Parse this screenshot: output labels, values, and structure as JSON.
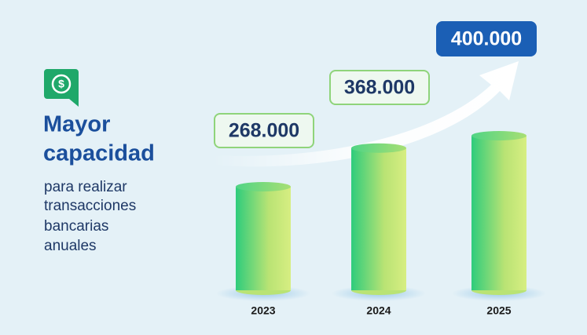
{
  "chart_data": {
    "type": "bar",
    "title": [
      "Mayor",
      "capacidad"
    ],
    "subtitle": [
      "para realizar",
      "transacciones",
      "bancarias",
      "anuales"
    ],
    "categories": [
      "2023",
      "2024",
      "2025"
    ],
    "values": [
      268000,
      368000,
      400000
    ],
    "value_labels": [
      "268.000",
      "368.000",
      "400.000"
    ]
  }
}
